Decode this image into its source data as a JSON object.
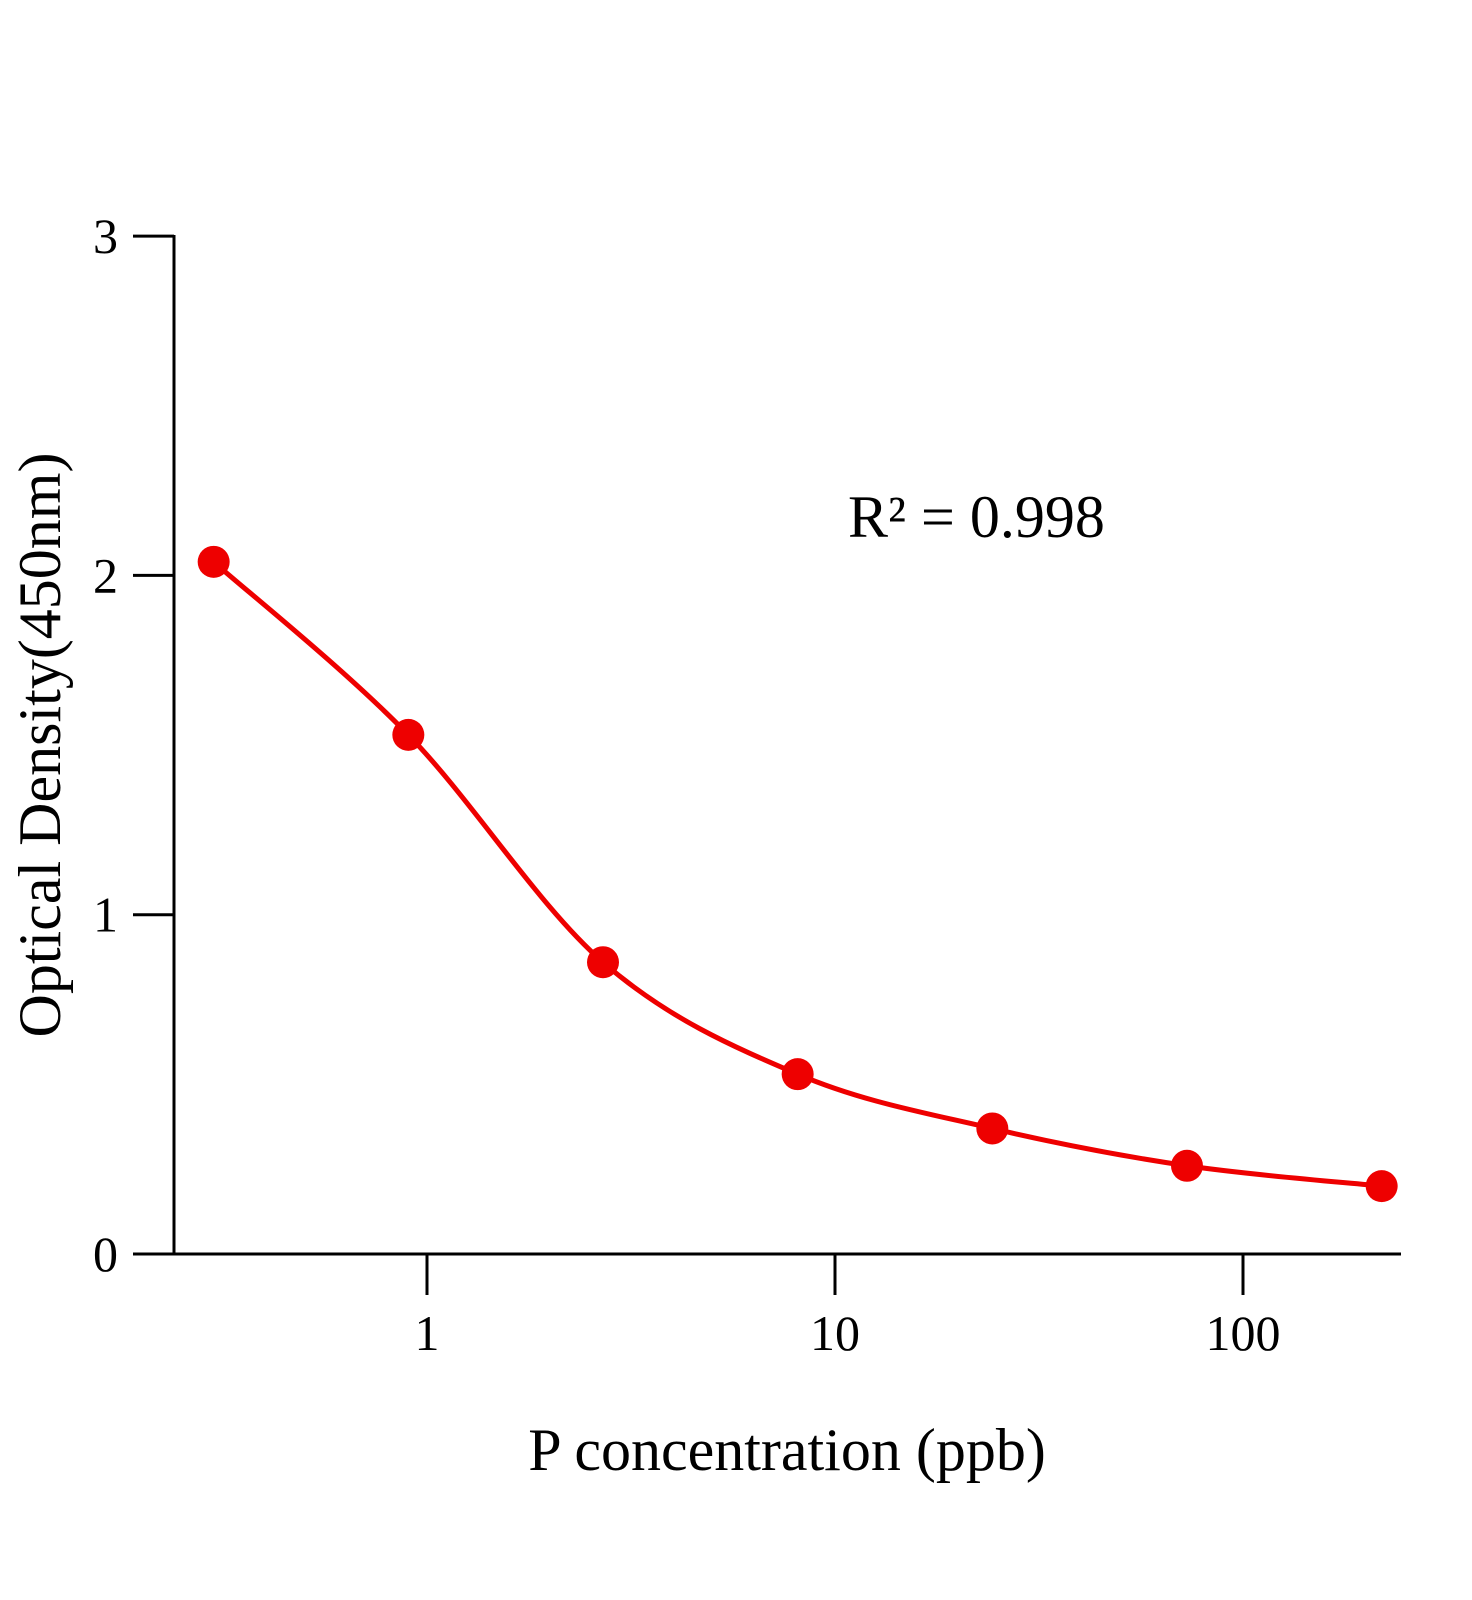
{
  "chart_data": {
    "type": "scatter",
    "title": "",
    "xlabel": "P concentration (ppb)",
    "ylabel": "Optical Density(450nm)",
    "xscale": "log",
    "xlim": [
      0.19,
      243
    ],
    "ylim": [
      0,
      3
    ],
    "xticks": [
      1,
      10,
      100
    ],
    "xtick_labels": [
      "1",
      "10",
      "100"
    ],
    "yticks": [
      0,
      1,
      2,
      3
    ],
    "ytick_labels": [
      "0",
      "1",
      "2",
      "3"
    ],
    "grid": false,
    "annotation": "R² = 0.998",
    "series": [
      {
        "x": [
          0.3,
          0.9,
          2.7,
          8.1,
          24.3,
          72.9,
          218.7
        ],
        "y": [
          2.04,
          1.53,
          0.86,
          0.53,
          0.37,
          0.26,
          0.2
        ],
        "color": "#ee0000",
        "fit_line": true
      }
    ]
  }
}
